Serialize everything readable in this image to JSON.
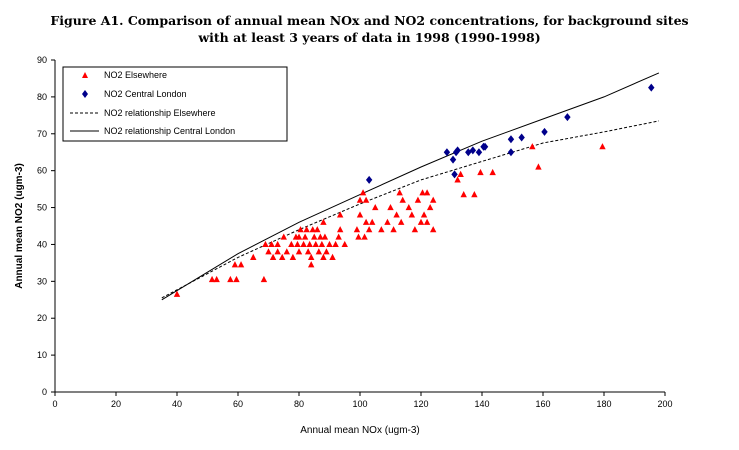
{
  "chart_data": {
    "type": "scatter",
    "title_lines": [
      "Figure A1. Comparison of annual mean NOx and NO2 concentrations, for background sites",
      "with at least 3 years of data in 1998 (1990-1998)"
    ],
    "xlabel": "Annual mean NOx (ugm-3)",
    "ylabel": "Annual mean NO2 (ugm-3)",
    "xlim": [
      0,
      200
    ],
    "ylim": [
      0,
      90
    ],
    "xticks": [
      0,
      20,
      40,
      60,
      80,
      100,
      120,
      140,
      160,
      180,
      200
    ],
    "yticks": [
      0,
      10,
      20,
      30,
      40,
      50,
      60,
      70,
      80,
      90
    ],
    "grid": false,
    "legend_position": "top-left",
    "series": [
      {
        "name": "NO2 Elsewhere",
        "kind": "points",
        "marker": "triangle",
        "color": "#ff0000",
        "points": [
          [
            40,
            26.5
          ],
          [
            51.5,
            30.5
          ],
          [
            53,
            30.5
          ],
          [
            57.5,
            30.5
          ],
          [
            59.5,
            30.5
          ],
          [
            59,
            34.5
          ],
          [
            61,
            34.5
          ],
          [
            65,
            36.5
          ],
          [
            68.5,
            30.5
          ],
          [
            69,
            40
          ],
          [
            70,
            38
          ],
          [
            71,
            40
          ],
          [
            71.5,
            36.5
          ],
          [
            73,
            38
          ],
          [
            73,
            40
          ],
          [
            74.5,
            36.5
          ],
          [
            75,
            42
          ],
          [
            76,
            38
          ],
          [
            77.5,
            40
          ],
          [
            78,
            36.5
          ],
          [
            79,
            42
          ],
          [
            79.5,
            40
          ],
          [
            80,
            38
          ],
          [
            80,
            42
          ],
          [
            80.5,
            44
          ],
          [
            81.5,
            40
          ],
          [
            82,
            42
          ],
          [
            82.5,
            44
          ],
          [
            83,
            38
          ],
          [
            83.5,
            40
          ],
          [
            84,
            36.5
          ],
          [
            84,
            34.5
          ],
          [
            84.5,
            44
          ],
          [
            85,
            42
          ],
          [
            85.5,
            40
          ],
          [
            86,
            44
          ],
          [
            86.5,
            38
          ],
          [
            87,
            42
          ],
          [
            87.5,
            40
          ],
          [
            88,
            36.5
          ],
          [
            88,
            46
          ],
          [
            88.5,
            42
          ],
          [
            89,
            38
          ],
          [
            90,
            40
          ],
          [
            91,
            36.5
          ],
          [
            92,
            40
          ],
          [
            93,
            42
          ],
          [
            93.5,
            48
          ],
          [
            93.5,
            44
          ],
          [
            95,
            40
          ],
          [
            99,
            44
          ],
          [
            99.5,
            42
          ],
          [
            100,
            52
          ],
          [
            100,
            48
          ],
          [
            101,
            54
          ],
          [
            101.5,
            42
          ],
          [
            102,
            46
          ],
          [
            102,
            52
          ],
          [
            103,
            44
          ],
          [
            104,
            46
          ],
          [
            105,
            50
          ],
          [
            107,
            44
          ],
          [
            109,
            46
          ],
          [
            110,
            50
          ],
          [
            111,
            44
          ],
          [
            112,
            48
          ],
          [
            113,
            54
          ],
          [
            113.5,
            46
          ],
          [
            114,
            52
          ],
          [
            116,
            50
          ],
          [
            117,
            48
          ],
          [
            118,
            44
          ],
          [
            119,
            52
          ],
          [
            120,
            46
          ],
          [
            120.5,
            54
          ],
          [
            121,
            48
          ],
          [
            122,
            46
          ],
          [
            122,
            54
          ],
          [
            123,
            50
          ],
          [
            124,
            52
          ],
          [
            124,
            44
          ],
          [
            132,
            57.5
          ],
          [
            133,
            59
          ],
          [
            134,
            53.5
          ],
          [
            137.5,
            53.5
          ],
          [
            139.5,
            59.5
          ],
          [
            143.5,
            59.5
          ],
          [
            156.5,
            66.5
          ],
          [
            158.5,
            61
          ],
          [
            179.5,
            66.5
          ]
        ]
      },
      {
        "name": "NO2 Central London",
        "kind": "points",
        "marker": "diamond",
        "color": "#00008b",
        "points": [
          [
            103,
            57.5
          ],
          [
            128.5,
            65
          ],
          [
            130.5,
            63
          ],
          [
            131.5,
            65
          ],
          [
            131,
            59
          ],
          [
            132,
            65.5
          ],
          [
            135.5,
            65
          ],
          [
            137,
            65.5
          ],
          [
            139,
            65
          ],
          [
            140.5,
            66.5
          ],
          [
            141,
            66.5
          ],
          [
            149.5,
            68.5
          ],
          [
            149.5,
            65
          ],
          [
            153,
            69
          ],
          [
            160.5,
            70.5
          ],
          [
            168,
            74.5
          ],
          [
            195.5,
            82.5
          ]
        ]
      },
      {
        "name": "NO2 relationship Elsewhere",
        "kind": "line",
        "dash": "3,2",
        "color": "#000000",
        "points": [
          [
            35,
            25.5
          ],
          [
            60,
            36.5
          ],
          [
            80,
            44
          ],
          [
            100,
            51
          ],
          [
            120,
            57.5
          ],
          [
            140,
            62.5
          ],
          [
            160,
            67.5
          ],
          [
            180,
            70.5
          ],
          [
            198,
            73.5
          ]
        ]
      },
      {
        "name": "NO2 relationship Central London",
        "kind": "line",
        "dash": "",
        "color": "#000000",
        "points": [
          [
            35,
            25
          ],
          [
            60,
            37.5
          ],
          [
            80,
            46
          ],
          [
            100,
            53.5
          ],
          [
            120,
            61
          ],
          [
            140,
            68
          ],
          [
            160,
            74
          ],
          [
            180,
            80
          ],
          [
            198,
            86.5
          ]
        ]
      }
    ]
  }
}
